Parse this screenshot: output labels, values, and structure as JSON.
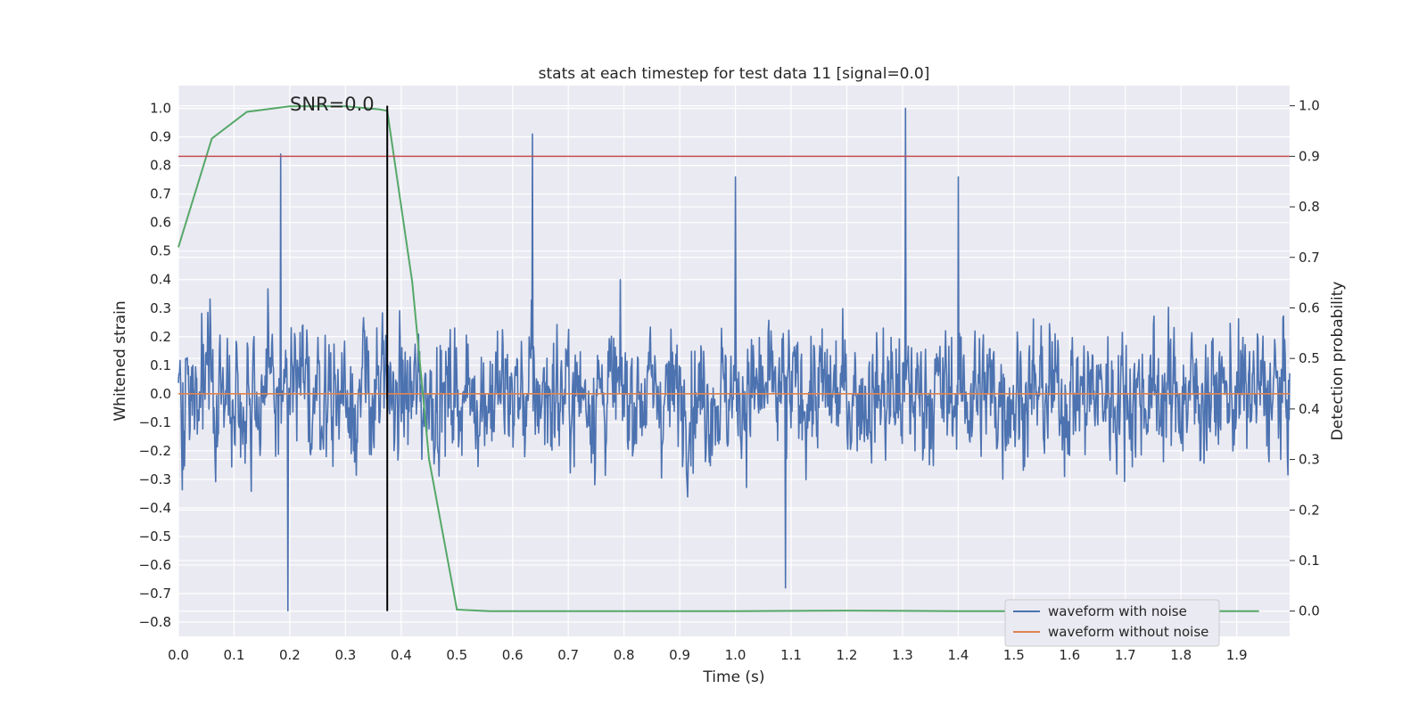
{
  "chart_data": {
    "type": "line",
    "title": "stats at each timestep for test data 11 [signal=0.0]",
    "xlabel": "Time (s)",
    "ylabel": "Whitened strain",
    "y2label": "Detection probability",
    "annotation": "SNR=0.0",
    "xlim": [
      0.0,
      1.995
    ],
    "ylim": [
      -0.85,
      1.08
    ],
    "y2lim": [
      -0.05,
      1.04
    ],
    "xticks": [
      "0.0",
      "0.1",
      "0.2",
      "0.3",
      "0.4",
      "0.5",
      "0.6",
      "0.7",
      "0.8",
      "0.9",
      "1.0",
      "1.1",
      "1.2",
      "1.3",
      "1.4",
      "1.5",
      "1.6",
      "1.7",
      "1.8",
      "1.9"
    ],
    "yticks": [
      "1.0",
      "0.9",
      "0.8",
      "0.7",
      "0.6",
      "0.5",
      "0.4",
      "0.3",
      "0.2",
      "0.1",
      "0.0",
      "−0.1",
      "−0.2",
      "−0.3",
      "−0.4",
      "−0.5",
      "−0.6",
      "−0.7",
      "−0.8"
    ],
    "y2ticks": [
      "1.0",
      "0.9",
      "0.8",
      "0.7",
      "0.6",
      "0.5",
      "0.4",
      "0.3",
      "0.2",
      "0.1",
      "0.0"
    ],
    "grid": true,
    "legend_position": "lower right",
    "legend": [
      "waveform with noise",
      "waveform without noise"
    ],
    "colors": {
      "noisy": "#4c72b0",
      "clean": "#dd8452",
      "probability": "#55a868",
      "threshold": "#c44e52",
      "marker": "#000000",
      "background": "#eaeaf2",
      "grid": "#ffffff"
    },
    "series": [
      {
        "name": "waveform with noise",
        "axis": "left",
        "sampling": "synthetic noise, uniformly sampled over 0–1.995 s; range about −0.76 to 1.0",
        "peaks": [
          {
            "x": 0.184,
            "y": 0.84
          },
          {
            "x": 0.197,
            "y": -0.76
          },
          {
            "x": 0.636,
            "y": 0.91
          },
          {
            "x": 1.0,
            "y": 0.76
          },
          {
            "x": 1.09,
            "y": -0.68
          },
          {
            "x": 1.305,
            "y": 1.0
          },
          {
            "x": 1.4,
            "y": 0.76
          }
        ]
      },
      {
        "name": "waveform without noise",
        "axis": "left",
        "x": [
          0.0,
          1.995
        ],
        "y": [
          0.0,
          0.0
        ]
      },
      {
        "name": "",
        "axis": "right",
        "x": [
          0.0,
          0.06,
          0.123,
          0.2,
          0.3,
          0.36,
          0.375,
          0.42,
          0.45,
          0.5,
          0.56,
          0.8,
          1.0,
          1.2,
          1.4,
          1.6,
          1.8,
          1.94
        ],
        "y": [
          0.72,
          0.935,
          0.988,
          0.999,
          0.999,
          0.993,
          0.99,
          0.65,
          0.3,
          0.003,
          0.0,
          0.0,
          0.0,
          0.001,
          0.0,
          0.0,
          0.0,
          0.0
        ]
      }
    ],
    "threshold": 0.9,
    "marker_x": 0.375
  }
}
